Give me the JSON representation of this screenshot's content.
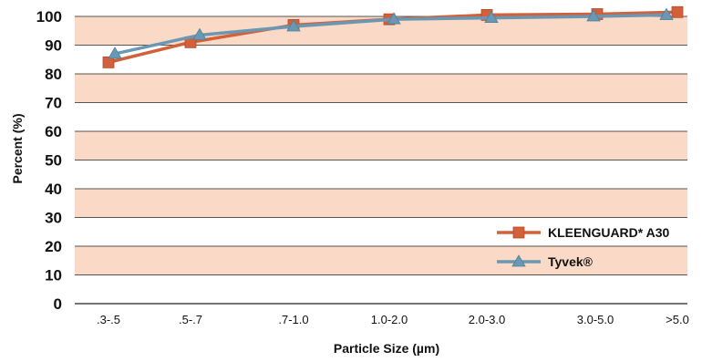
{
  "chart_data": {
    "type": "line",
    "title": "",
    "xlabel": "Particle Size (µm)",
    "ylabel": "Percent  (%)",
    "categories": [
      ".3-.5",
      ".5-.7",
      ".7-1.0",
      "1.0-2.0",
      "2.0-3.0",
      "3.0-5.0",
      ">5.0"
    ],
    "y_ticks": [
      "0",
      "10",
      "20",
      "30",
      "40",
      "50",
      "60",
      "70",
      "80",
      "90",
      "100"
    ],
    "ylim": [
      0,
      100
    ],
    "grid": true,
    "band_color": "#fad9c6",
    "legend_position": "bottom-right",
    "series": [
      {
        "name": "KLEENGUARD* A30",
        "color": "#d2603b",
        "marker": "square",
        "values": [
          84,
          91,
          97,
          99,
          100.5,
          100.8,
          101.5
        ]
      },
      {
        "name": "Tyvek®",
        "color": "#6a98b3",
        "marker": "triangle",
        "values": [
          87,
          93.5,
          96.5,
          99,
          99.5,
          100,
          100.5
        ]
      }
    ]
  }
}
